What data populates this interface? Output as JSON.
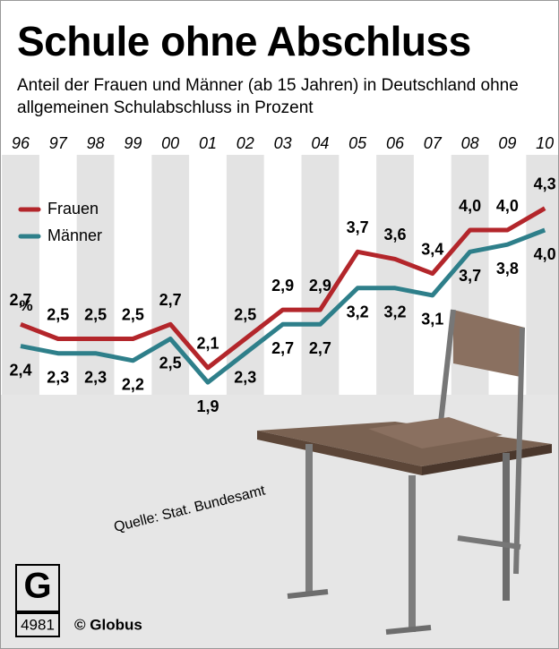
{
  "chart_data": {
    "type": "line",
    "title": "Schule ohne Abschluss",
    "subtitle": "Anteil der Frauen und Männer (ab 15 Jahren) in Deutschland ohne allgemeinen Schulabschluss in Prozent",
    "categories": [
      "96",
      "97",
      "98",
      "99",
      "00",
      "01",
      "02",
      "03",
      "04",
      "05",
      "06",
      "07",
      "08",
      "09",
      "10"
    ],
    "series": [
      {
        "name": "Frauen",
        "color": "#b3262b",
        "values": [
          2.7,
          2.5,
          2.5,
          2.5,
          2.7,
          2.1,
          2.5,
          2.9,
          2.9,
          3.7,
          3.6,
          3.4,
          4.0,
          4.0,
          4.3
        ],
        "value_labels": [
          "2,7",
          "2,5",
          "2,5",
          "2,5",
          "2,7",
          "2,1",
          "2,5",
          "2,9",
          "2,9",
          "3,7",
          "3,6",
          "3,4",
          "4,0",
          "4,0",
          "4,3"
        ]
      },
      {
        "name": "Männer",
        "color": "#2e7f8a",
        "values": [
          2.4,
          2.3,
          2.3,
          2.2,
          2.5,
          1.9,
          2.3,
          2.7,
          2.7,
          3.2,
          3.2,
          3.1,
          3.7,
          3.8,
          4.0
        ],
        "value_labels": [
          "2,4",
          "2,3",
          "2,3",
          "2,2",
          "2,5",
          "1,9",
          "2,3",
          "2,7",
          "2,7",
          "3,2",
          "3,2",
          "3,1",
          "3,7",
          "3,8",
          "4,0"
        ]
      }
    ],
    "unit": "%",
    "source": "Quelle: Stat. Bundesamt",
    "graphic_number": "4981",
    "credit": "© Globus"
  }
}
